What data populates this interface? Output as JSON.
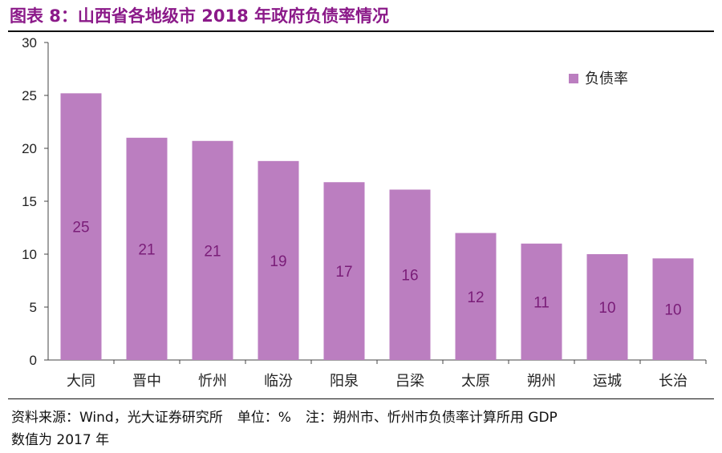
{
  "title": "图表 8：山西省各地级市 2018 年政府负债率情况",
  "footer": {
    "source": "资料来源：Wind，光大证券研究所",
    "unit": "单位：%",
    "note_line1": "注：朔州市、忻州市负债率计算所用 GDP",
    "note_line2": "数值为 2017 年"
  },
  "colors": {
    "bar": "#bb7ec0",
    "bar_label": "#7a1d78",
    "title": "#8b1a89"
  },
  "chart_data": {
    "type": "bar",
    "categories": [
      "大同",
      "晋中",
      "忻州",
      "临汾",
      "阳泉",
      "吕梁",
      "太原",
      "朔州",
      "运城",
      "长治"
    ],
    "series": [
      {
        "name": "负债率",
        "values": [
          25.2,
          21.0,
          20.7,
          18.8,
          16.8,
          16.1,
          12.0,
          11.0,
          10.0,
          9.6
        ],
        "labels": [
          "25",
          "21",
          "21",
          "19",
          "17",
          "16",
          "12",
          "11",
          "10",
          "10"
        ]
      }
    ],
    "ylim": [
      0,
      30
    ],
    "yticks": [
      0,
      5,
      10,
      15,
      20,
      25,
      30
    ],
    "legend": "top-right",
    "xlabel": "",
    "ylabel": ""
  }
}
